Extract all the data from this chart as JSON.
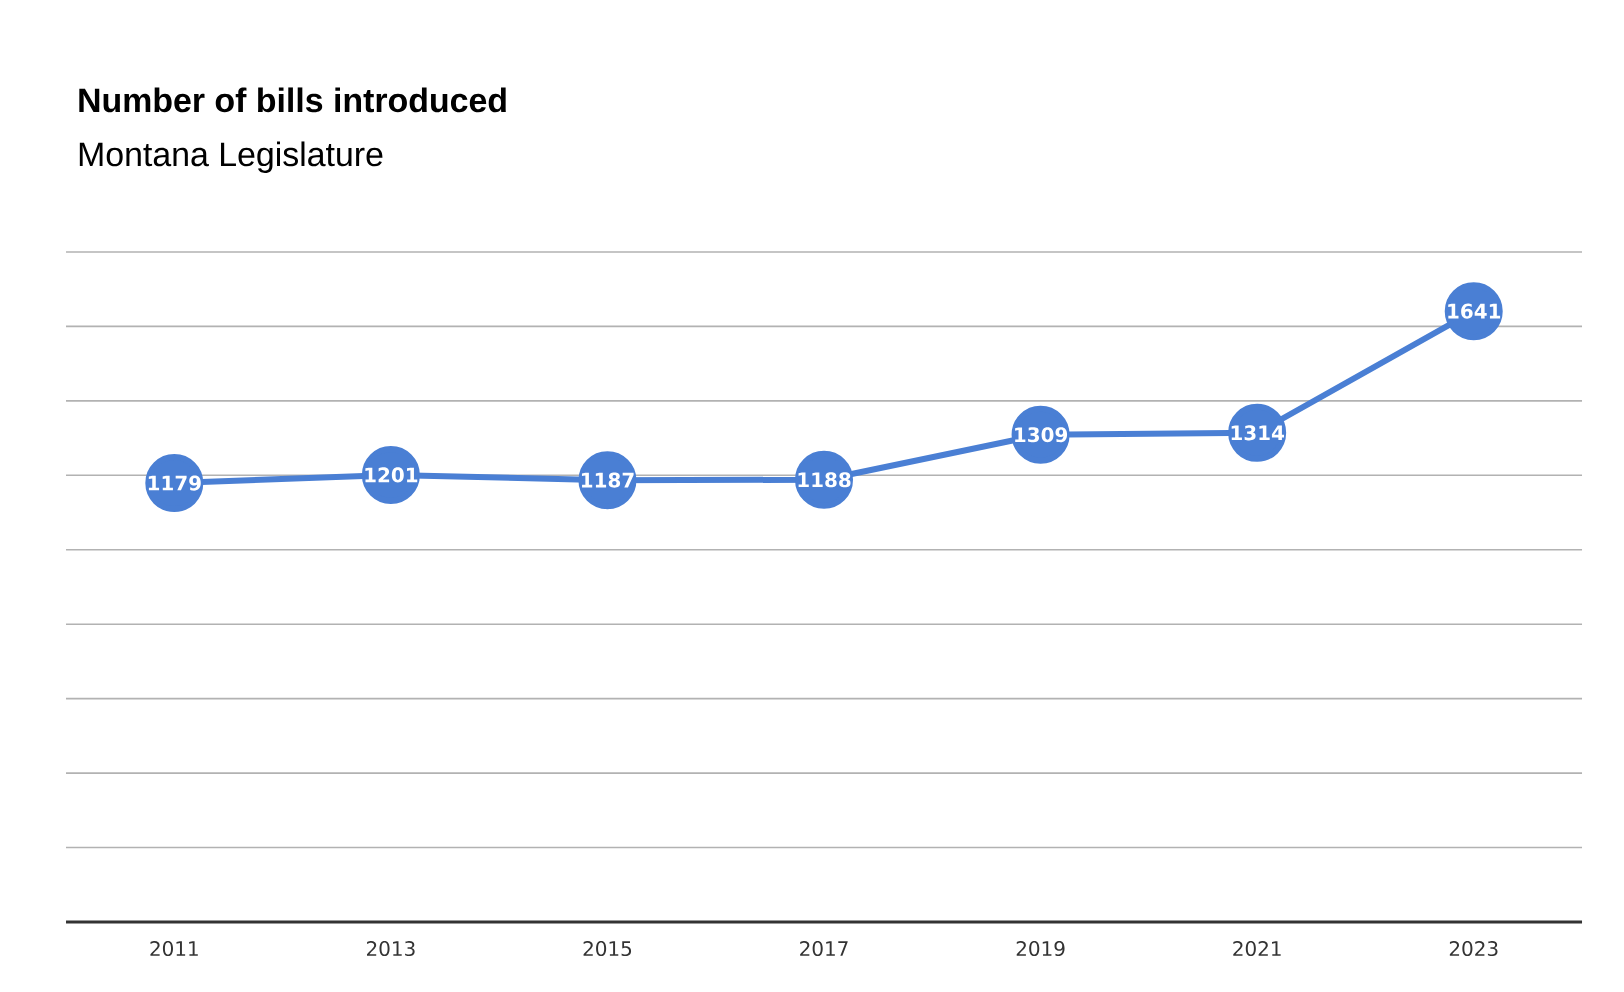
{
  "chart_data": {
    "type": "line",
    "title": "Number of bills introduced",
    "subtitle": "Montana Legislature",
    "categories": [
      "2011",
      "2013",
      "2015",
      "2017",
      "2019",
      "2021",
      "2023"
    ],
    "values": [
      1179,
      1201,
      1187,
      1188,
      1309,
      1314,
      1641
    ],
    "color": "#4a7fd4",
    "marker": "circle",
    "line_style": "solid",
    "data_labels": true,
    "ylim": [
      0,
      1800
    ],
    "yticks": [
      {
        "value": 0,
        "label": null
      },
      {
        "value": 200,
        "label": null
      },
      {
        "value": 400,
        "label": null
      },
      {
        "value": 600,
        "label": null
      },
      {
        "value": 800,
        "label": null
      },
      {
        "value": 1000,
        "label": null
      },
      {
        "value": 1200,
        "label": null
      },
      {
        "value": 1400,
        "label": null
      },
      {
        "value": 1600,
        "label": null
      },
      {
        "value": 1800,
        "label": null
      }
    ],
    "tick_labels": "x",
    "grid": "y"
  }
}
